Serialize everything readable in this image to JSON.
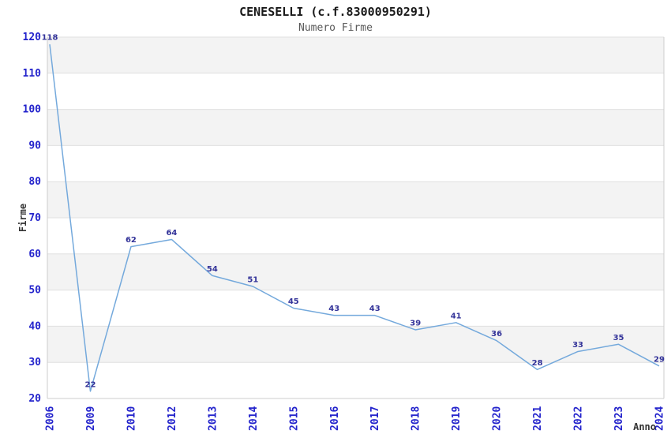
{
  "chart_data": {
    "type": "line",
    "title": "CENESELLI (c.f.83000950291)",
    "subtitle": "Numero Firme",
    "xlabel": "Anno",
    "ylabel": "Firme",
    "categories": [
      "2006",
      "2009",
      "2010",
      "2012",
      "2013",
      "2014",
      "2015",
      "2016",
      "2017",
      "2018",
      "2019",
      "2020",
      "2021",
      "2022",
      "2023",
      "2024"
    ],
    "values": [
      118,
      22,
      62,
      64,
      54,
      51,
      45,
      43,
      43,
      39,
      41,
      36,
      28,
      33,
      35,
      29
    ],
    "ylim": [
      20,
      120
    ],
    "ytick_step": 10,
    "yticks": [
      20,
      30,
      40,
      50,
      60,
      70,
      80,
      90,
      100,
      110,
      120
    ],
    "grid": true,
    "banding": "alternating-horizontal-bands",
    "legend": "none",
    "markers": "none",
    "x_tick_rotation": 90,
    "line_color": "#74a9dc",
    "tick_label_color": "#2424cc",
    "data_label_color": "#333399",
    "band_color": "#f3f3f3",
    "grid_color": "#e0e0e0",
    "axis_line_color": "#cccccc",
    "axis_title_color": "#333333"
  }
}
